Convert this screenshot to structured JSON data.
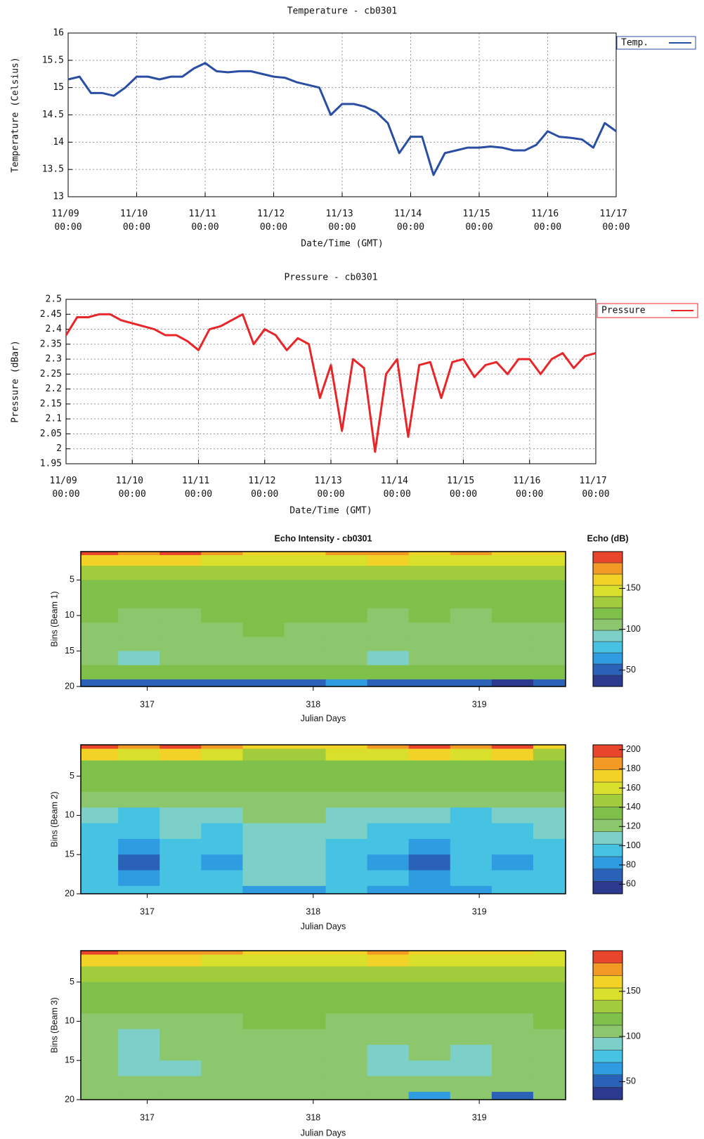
{
  "chart_data": [
    {
      "type": "line",
      "title": "Temperature -  cb0301",
      "xlabel": "Date/Time (GMT)",
      "ylabel": "Temperature (Celsius)",
      "x": [
        "11/09 00:00",
        "11/09 04:00",
        "11/09 08:00",
        "11/09 12:00",
        "11/09 16:00",
        "11/09 20:00",
        "11/10 00:00",
        "11/10 04:00",
        "11/10 08:00",
        "11/10 12:00",
        "11/10 16:00",
        "11/10 20:00",
        "11/11 00:00",
        "11/11 04:00",
        "11/11 08:00",
        "11/11 12:00",
        "11/11 16:00",
        "11/11 20:00",
        "11/12 00:00",
        "11/12 04:00",
        "11/12 08:00",
        "11/12 12:00",
        "11/12 16:00",
        "11/12 20:00",
        "11/13 00:00",
        "11/13 04:00",
        "11/13 08:00",
        "11/13 12:00",
        "11/13 16:00",
        "11/13 20:00",
        "11/14 00:00",
        "11/14 04:00",
        "11/14 08:00",
        "11/14 12:00",
        "11/14 16:00",
        "11/14 20:00",
        "11/15 00:00",
        "11/15 04:00",
        "11/15 08:00",
        "11/15 12:00",
        "11/15 16:00",
        "11/15 20:00",
        "11/16 00:00",
        "11/16 04:00",
        "11/16 08:00",
        "11/16 12:00",
        "11/16 16:00",
        "11/16 20:00",
        "11/17 00:00"
      ],
      "series": [
        {
          "name": "Temp.",
          "color": "#2a4ea3",
          "values": [
            15.15,
            15.2,
            14.9,
            14.9,
            14.85,
            15.0,
            15.2,
            15.2,
            15.15,
            15.2,
            15.2,
            15.35,
            15.45,
            15.3,
            15.28,
            15.3,
            15.3,
            15.25,
            15.2,
            15.18,
            15.1,
            15.05,
            15.0,
            14.5,
            14.7,
            14.7,
            14.65,
            14.55,
            14.35,
            13.8,
            14.1,
            14.1,
            13.4,
            13.8,
            13.85,
            13.9,
            13.9,
            13.92,
            13.9,
            13.85,
            13.85,
            13.95,
            14.2,
            14.1,
            14.08,
            14.05,
            13.9,
            14.35,
            14.2
          ]
        }
      ],
      "xlim": [
        "11/09 00:00",
        "11/17 00:00"
      ],
      "xticks": [
        "11/09 00:00",
        "11/10 00:00",
        "11/11 00:00",
        "11/12 00:00",
        "11/13 00:00",
        "11/14 00:00",
        "11/15 00:00",
        "11/16 00:00",
        "11/17 00:00"
      ],
      "ylim": [
        13,
        16
      ],
      "yticks": [
        13,
        13.5,
        14,
        14.5,
        15,
        15.5,
        16
      ],
      "grid": true,
      "legend": "right"
    },
    {
      "type": "line",
      "title": "Pressure -  cb0301",
      "xlabel": "Date/Time (GMT)",
      "ylabel": "Pressure (dBar)",
      "x": [
        "11/09 00:00",
        "11/09 04:00",
        "11/09 08:00",
        "11/09 12:00",
        "11/09 16:00",
        "11/09 20:00",
        "11/10 00:00",
        "11/10 04:00",
        "11/10 08:00",
        "11/10 12:00",
        "11/10 16:00",
        "11/10 20:00",
        "11/11 00:00",
        "11/11 04:00",
        "11/11 08:00",
        "11/11 12:00",
        "11/11 16:00",
        "11/11 20:00",
        "11/12 00:00",
        "11/12 04:00",
        "11/12 08:00",
        "11/12 12:00",
        "11/12 16:00",
        "11/12 20:00",
        "11/13 00:00",
        "11/13 04:00",
        "11/13 08:00",
        "11/13 12:00",
        "11/13 16:00",
        "11/13 20:00",
        "11/14 00:00",
        "11/14 04:00",
        "11/14 08:00",
        "11/14 12:00",
        "11/14 16:00",
        "11/14 20:00",
        "11/15 00:00",
        "11/15 04:00",
        "11/15 08:00",
        "11/15 12:00",
        "11/15 16:00",
        "11/15 20:00",
        "11/16 00:00",
        "11/16 04:00",
        "11/16 08:00",
        "11/16 12:00",
        "11/16 16:00",
        "11/16 20:00",
        "11/17 00:00"
      ],
      "series": [
        {
          "name": "Pressure",
          "color": "#e8262a",
          "values": [
            2.38,
            2.44,
            2.44,
            2.45,
            2.45,
            2.43,
            2.42,
            2.41,
            2.4,
            2.38,
            2.38,
            2.36,
            2.33,
            2.4,
            2.41,
            2.43,
            2.45,
            2.35,
            2.4,
            2.38,
            2.33,
            2.37,
            2.35,
            2.17,
            2.28,
            2.06,
            2.3,
            2.27,
            1.99,
            2.25,
            2.3,
            2.04,
            2.28,
            2.29,
            2.17,
            2.29,
            2.3,
            2.24,
            2.28,
            2.29,
            2.25,
            2.3,
            2.3,
            2.25,
            2.3,
            2.32,
            2.27,
            2.31,
            2.32
          ]
        }
      ],
      "xlim": [
        "11/09 00:00",
        "11/17 00:00"
      ],
      "xticks": [
        "11/09 00:00",
        "11/10 00:00",
        "11/11 00:00",
        "11/12 00:00",
        "11/13 00:00",
        "11/14 00:00",
        "11/15 00:00",
        "11/16 00:00",
        "11/17 00:00"
      ],
      "ylim": [
        1.95,
        2.5
      ],
      "yticks": [
        1.95,
        2,
        2.05,
        2.1,
        2.15,
        2.2,
        2.25,
        2.3,
        2.35,
        2.4,
        2.45,
        2.5
      ],
      "grid": true,
      "legend": "right"
    },
    {
      "type": "heatmap",
      "title": "Echo Intensity - cb0301",
      "colorbar_label": "Echo (dB)",
      "xlabel": "Julian Days",
      "ylabel": "Bins (Beam 1)",
      "x": [
        316.7,
        316.95,
        317.2,
        317.45,
        317.7,
        317.95,
        318.2,
        318.45,
        318.7,
        318.95,
        319.2,
        319.45
      ],
      "y": [
        1,
        2,
        4,
        6,
        8,
        10,
        12,
        14,
        16,
        18,
        20
      ],
      "z": [
        [
          185,
          180,
          185,
          170,
          165,
          160,
          170,
          175,
          165,
          170,
          160,
          155
        ],
        [
          165,
          160,
          165,
          150,
          145,
          145,
          150,
          160,
          145,
          150,
          145,
          140
        ],
        [
          135,
          130,
          130,
          130,
          128,
          130,
          130,
          132,
          130,
          132,
          130,
          128
        ],
        [
          125,
          125,
          122,
          125,
          125,
          125,
          125,
          125,
          125,
          125,
          122,
          125
        ],
        [
          122,
          118,
          120,
          120,
          122,
          120,
          120,
          120,
          120,
          118,
          120,
          122
        ],
        [
          115,
          110,
          112,
          115,
          118,
          118,
          115,
          112,
          115,
          110,
          115,
          118
        ],
        [
          110,
          105,
          108,
          112,
          115,
          112,
          110,
          105,
          110,
          105,
          112,
          110
        ],
        [
          108,
          100,
          105,
          108,
          112,
          110,
          108,
          100,
          108,
          102,
          110,
          105
        ],
        [
          105,
          98,
          102,
          105,
          110,
          108,
          104,
          98,
          104,
          100,
          108,
          102
        ],
        [
          118,
          115,
          118,
          118,
          120,
          118,
          118,
          115,
          118,
          115,
          118,
          118
        ],
        [
          55,
          55,
          55,
          55,
          55,
          55,
          60,
          55,
          45,
          50,
          40,
          50
        ]
      ],
      "xlim": [
        316.6,
        319.52
      ],
      "xticks": [
        317,
        318,
        319
      ],
      "ylim": [
        20,
        1
      ],
      "yticks": [
        5,
        10,
        15,
        20
      ],
      "zlim": [
        30,
        195
      ],
      "zticks": [
        50,
        100,
        150
      ],
      "colorscale": [
        "#2b3a8f",
        "#2a62b8",
        "#2f9be0",
        "#46c2e3",
        "#7cd0c8",
        "#8cc66d",
        "#7ec04a",
        "#a3cc3c",
        "#d8e02c",
        "#f2d226",
        "#f29a24",
        "#e8452a"
      ]
    },
    {
      "type": "heatmap",
      "xlabel": "Julian Days",
      "ylabel": "Bins (Beam 2)",
      "x": [
        316.7,
        316.95,
        317.2,
        317.45,
        317.7,
        317.95,
        318.2,
        318.45,
        318.7,
        318.95,
        319.2,
        319.45
      ],
      "y": [
        1,
        2,
        4,
        6,
        8,
        10,
        12,
        14,
        16,
        18,
        20
      ],
      "z": [
        [
          195,
          190,
          195,
          180,
          175,
          170,
          175,
          180,
          200,
          180,
          200,
          175
        ],
        [
          170,
          165,
          170,
          155,
          150,
          150,
          155,
          165,
          170,
          155,
          175,
          150
        ],
        [
          138,
          135,
          135,
          135,
          132,
          132,
          135,
          135,
          135,
          135,
          135,
          132
        ],
        [
          128,
          128,
          128,
          128,
          130,
          128,
          128,
          128,
          128,
          128,
          128,
          128
        ],
        [
          122,
          118,
          120,
          122,
          125,
          122,
          120,
          118,
          120,
          115,
          118,
          122
        ],
        [
          108,
          100,
          108,
          110,
          118,
          115,
          110,
          105,
          108,
          100,
          105,
          112
        ],
        [
          100,
          90,
          102,
          100,
          110,
          110,
          105,
          98,
          100,
          95,
          98,
          105
        ],
        [
          95,
          82,
          98,
          92,
          105,
          108,
          100,
          92,
          88,
          95,
          90,
          100
        ],
        [
          92,
          75,
          95,
          88,
          102,
          105,
          95,
          88,
          75,
          92,
          85,
          98
        ],
        [
          98,
          85,
          100,
          100,
          105,
          108,
          100,
          95,
          88,
          100,
          95,
          100
        ],
        [
          90,
          90,
          92,
          90,
          85,
          80,
          90,
          88,
          80,
          88,
          90,
          92
        ]
      ],
      "xlim": [
        316.6,
        319.52
      ],
      "xticks": [
        317,
        318,
        319
      ],
      "ylim": [
        20,
        1
      ],
      "yticks": [
        5,
        10,
        15,
        20
      ],
      "zlim": [
        50,
        205
      ],
      "zticks": [
        60,
        80,
        100,
        120,
        140,
        160,
        180,
        200
      ],
      "colorscale": [
        "#2b3a8f",
        "#2a62b8",
        "#2f9be0",
        "#46c2e3",
        "#7cd0c8",
        "#8cc66d",
        "#7ec04a",
        "#a3cc3c",
        "#d8e02c",
        "#f2d226",
        "#f29a24",
        "#e8452a"
      ]
    },
    {
      "type": "heatmap",
      "xlabel": "Julian Days",
      "ylabel": "Bins (Beam 3)",
      "x": [
        316.7,
        316.95,
        317.2,
        317.45,
        317.7,
        317.95,
        318.2,
        318.45,
        318.7,
        318.95,
        319.2,
        319.45
      ],
      "y": [
        1,
        2,
        4,
        6,
        8,
        10,
        12,
        14,
        16,
        18,
        20
      ],
      "z": [
        [
          185,
          180,
          180,
          170,
          165,
          160,
          165,
          170,
          160,
          165,
          155,
          150
        ],
        [
          165,
          160,
          160,
          150,
          145,
          145,
          150,
          155,
          145,
          150,
          140,
          140
        ],
        [
          135,
          132,
          130,
          130,
          128,
          130,
          130,
          132,
          130,
          130,
          128,
          128
        ],
        [
          125,
          125,
          122,
          125,
          125,
          125,
          125,
          125,
          125,
          125,
          122,
          125
        ],
        [
          120,
          116,
          118,
          120,
          122,
          120,
          120,
          118,
          120,
          116,
          118,
          120
        ],
        [
          112,
          105,
          110,
          112,
          115,
          115,
          112,
          108,
          112,
          105,
          110,
          115
        ],
        [
          106,
          98,
          104,
          108,
          112,
          110,
          106,
          100,
          105,
          100,
          106,
          108
        ],
        [
          102,
          92,
          100,
          104,
          108,
          108,
          104,
          98,
          100,
          98,
          102,
          104
        ],
        [
          100,
          90,
          98,
          102,
          106,
          106,
          102,
          96,
          98,
          96,
          100,
          102
        ],
        [
          108,
          104,
          106,
          108,
          110,
          110,
          108,
          106,
          106,
          106,
          104,
          108
        ],
        [
          100,
          100,
          100,
          100,
          100,
          100,
          100,
          100,
          60,
          100,
          55,
          100
        ]
      ],
      "xlim": [
        316.6,
        319.52
      ],
      "xticks": [
        317,
        318,
        319
      ],
      "ylim": [
        20,
        1
      ],
      "yticks": [
        5,
        10,
        15,
        20
      ],
      "zlim": [
        30,
        195
      ],
      "zticks": [
        50,
        100,
        150
      ],
      "colorscale": [
        "#2b3a8f",
        "#2a62b8",
        "#2f9be0",
        "#46c2e3",
        "#7cd0c8",
        "#8cc66d",
        "#7ec04a",
        "#a3cc3c",
        "#d8e02c",
        "#f2d226",
        "#f29a24",
        "#e8452a"
      ]
    }
  ]
}
